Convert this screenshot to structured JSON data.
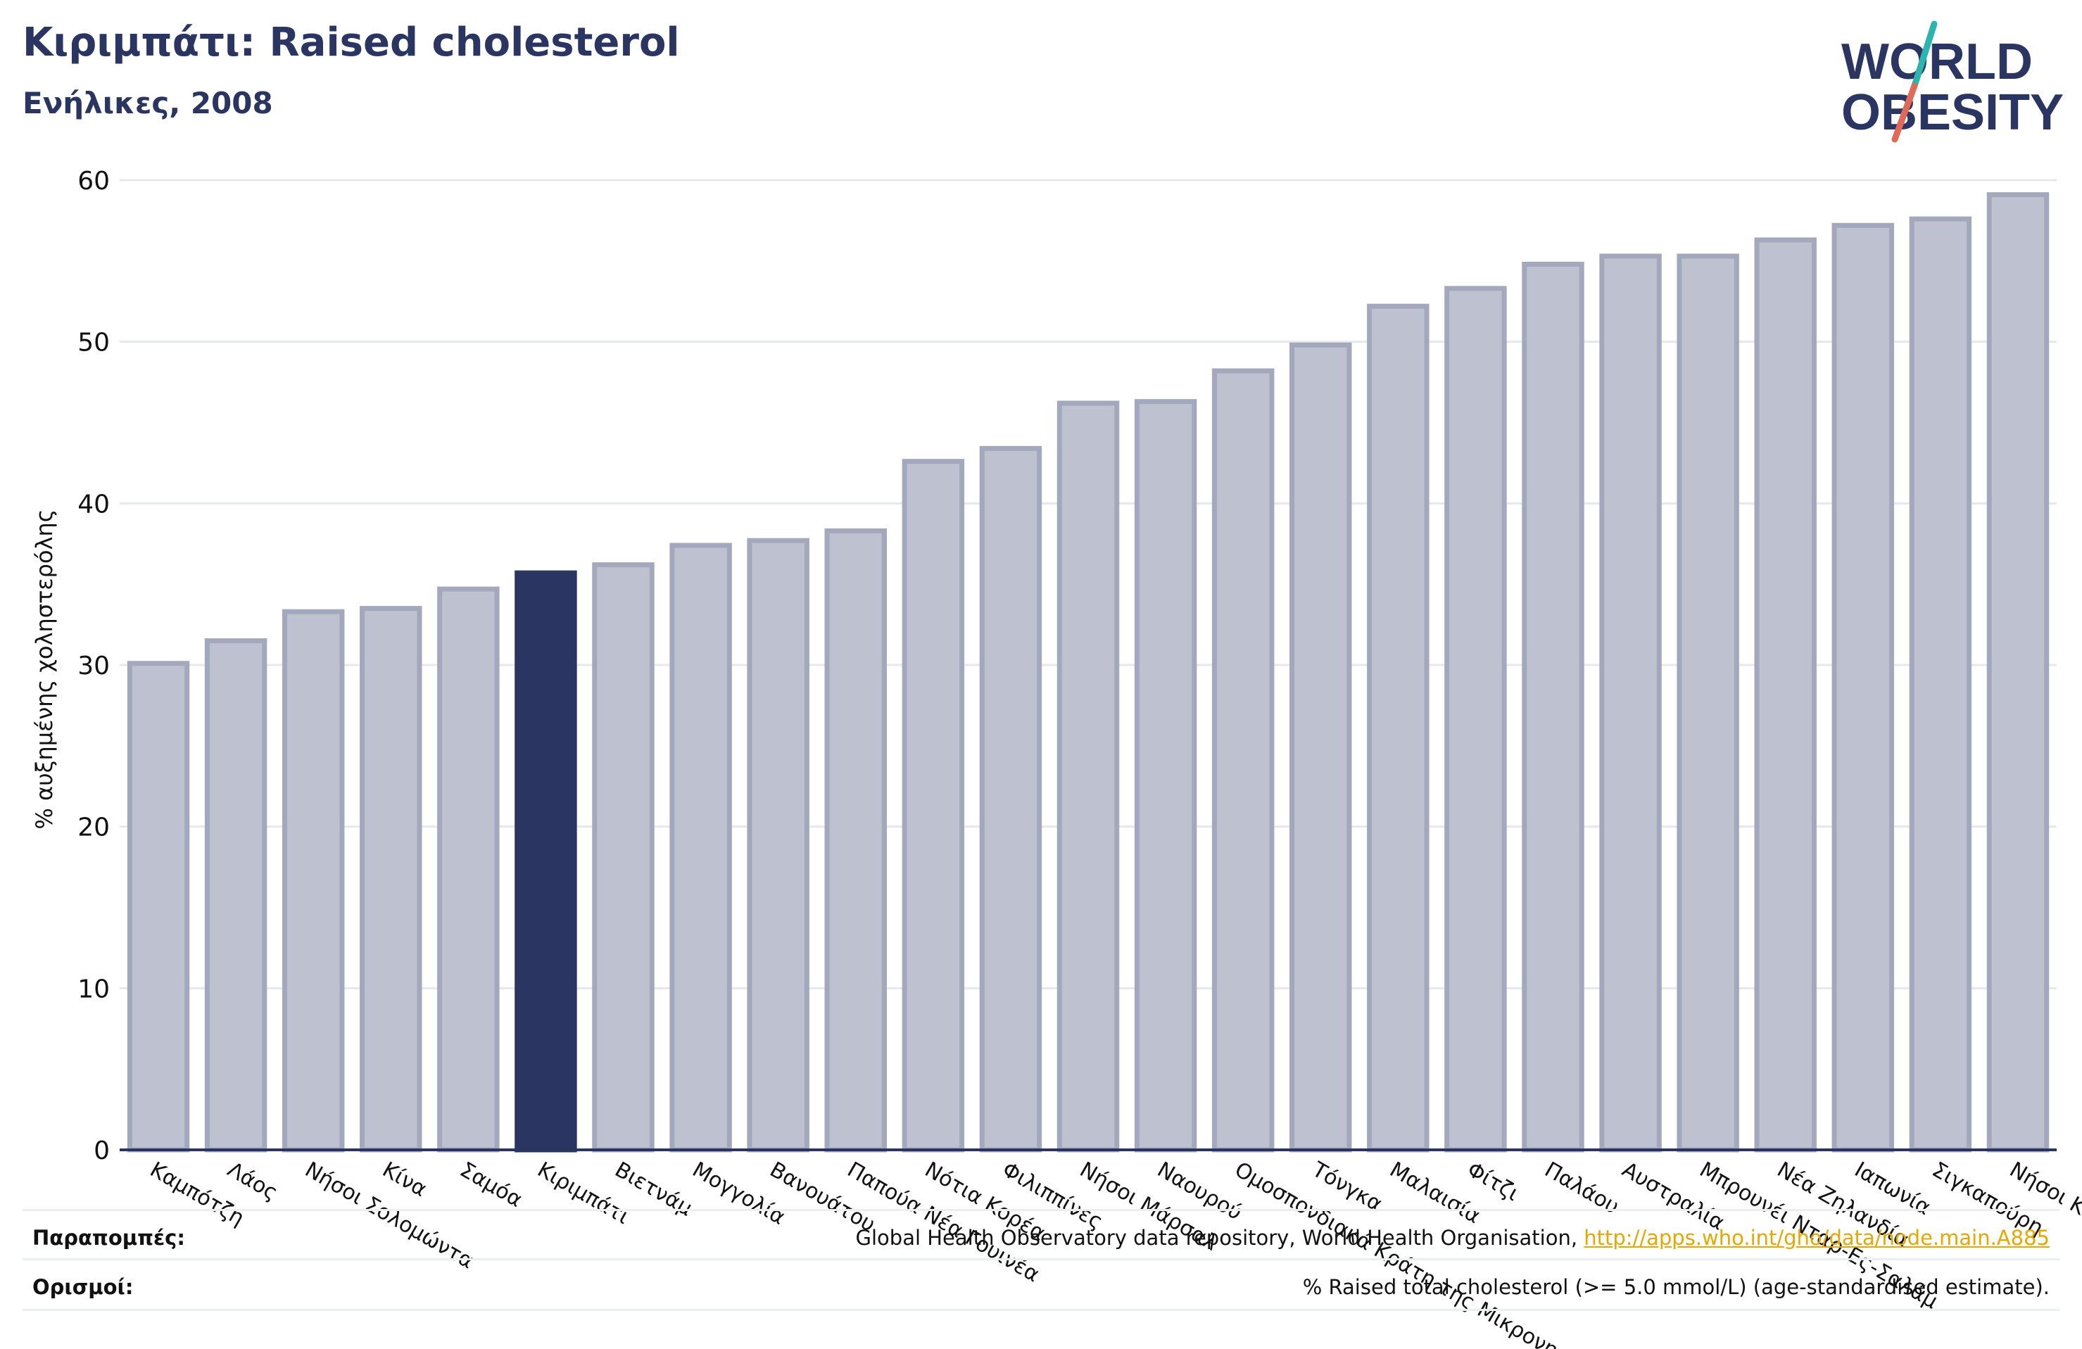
{
  "header": {
    "title": "Κιριμπάτι: Raised cholesterol",
    "subtitle": "Ενήλικες, 2008"
  },
  "logo": {
    "line1": "WORLD",
    "line2": "OBESITY",
    "text_color": "#2a3561",
    "slash_top_color": "#2bb5ae",
    "slash_bottom_color": "#e06a5a"
  },
  "chart_data": {
    "type": "bar",
    "ylabel": "% αυξημένης χοληστερόλης",
    "xlabel": "",
    "ylim": [
      0,
      60
    ],
    "yticks": [
      0,
      10,
      20,
      30,
      40,
      50,
      60
    ],
    "grid": true,
    "highlight": "Κιριμπάτι",
    "highlight_color": "#2a3561",
    "bar_color": "#bec1cf",
    "bar_edge_color": "#a3a8bd",
    "categories": [
      "Καμπότζη",
      "Λάος",
      "Νήσοι Σολομώντα",
      "Κίνα",
      "Σαμόα",
      "Κιριμπάτι",
      "Βιετνάμ",
      "Μογγολία",
      "Βανουάτου",
      "Παπούα Νέα Γουινέα",
      "Νότια Κορέα",
      "Φιλιππίνες",
      "Νήσοι Μάρσαλ",
      "Ναουρού",
      "Ομοσπονδιακά Κράτη της Μικρονησίας",
      "Τόνγκα",
      "Μαλαισία",
      "Φίτζι",
      "Παλάου",
      "Αυστραλία",
      "Μπρουνέι Νταρ-Ες-Σαλάμ",
      "Νέα Ζηλανδία",
      "Ιαπωνία",
      "Σιγκαπούρη",
      "Νήσοι Κουκ"
    ],
    "values": [
      30.1,
      31.5,
      33.3,
      33.5,
      34.7,
      35.7,
      36.2,
      37.4,
      37.7,
      38.3,
      42.6,
      43.4,
      46.2,
      46.3,
      48.2,
      49.8,
      52.2,
      53.3,
      54.8,
      55.3,
      55.3,
      56.3,
      57.2,
      57.6,
      59.1
    ]
  },
  "footer": {
    "references_label": "Παραπομπές:",
    "references_text": "Global Health Observatory data repository, World Health Organisation, ",
    "references_link": "http://apps.who.int/gho/data/node.main.A885",
    "definitions_label": "Ορισμοί:",
    "definitions_text": "% Raised total cholesterol (>= 5.0 mmol/L) (age-standardised estimate)."
  }
}
